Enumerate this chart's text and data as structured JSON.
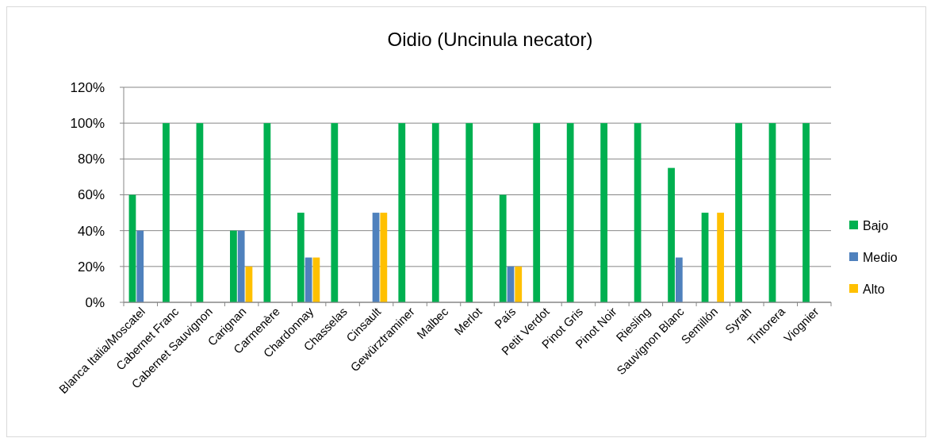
{
  "chart_data": {
    "type": "bar",
    "title": "Oidio (Uncinula necator)",
    "categories": [
      "Blanca Italia/Moscatel",
      "Cabernet Franc",
      "Cabernet Sauvignon",
      "Carignan",
      "Carmenère",
      "Chardonnay",
      "Chasselas",
      "Cinsault",
      "Gewürztraminer",
      "Malbec",
      "Merlot",
      "País",
      "Petit Verdot",
      "Pinot Gris",
      "Pinot Noir",
      "Riesling",
      "Sauvignon Blanc",
      "Semillón",
      "Syrah",
      "Tintorera",
      "Viognier"
    ],
    "series": [
      {
        "name": "Bajo",
        "color": "#00b050",
        "values": [
          60,
          100,
          100,
          40,
          100,
          50,
          100,
          0,
          100,
          100,
          100,
          60,
          100,
          100,
          100,
          100,
          75,
          50,
          100,
          100,
          100
        ]
      },
      {
        "name": "Medio",
        "color": "#4f81bd",
        "values": [
          40,
          0,
          0,
          40,
          0,
          25,
          0,
          50,
          0,
          0,
          0,
          20,
          0,
          0,
          0,
          0,
          25,
          0,
          0,
          0,
          0
        ]
      },
      {
        "name": "Alto",
        "color": "#ffc000",
        "values": [
          0,
          0,
          0,
          20,
          0,
          25,
          0,
          50,
          0,
          0,
          0,
          20,
          0,
          0,
          0,
          0,
          0,
          50,
          0,
          0,
          0
        ]
      }
    ],
    "ylim": [
      0,
      120
    ],
    "yticks": [
      {
        "value": 0,
        "label": "0%"
      },
      {
        "value": 20,
        "label": "20%"
      },
      {
        "value": 40,
        "label": "40%"
      },
      {
        "value": 60,
        "label": "60%"
      },
      {
        "value": 80,
        "label": "80%"
      },
      {
        "value": 100,
        "label": "100%"
      },
      {
        "value": 120,
        "label": "120%"
      }
    ],
    "grid": "y",
    "legend": "right"
  }
}
